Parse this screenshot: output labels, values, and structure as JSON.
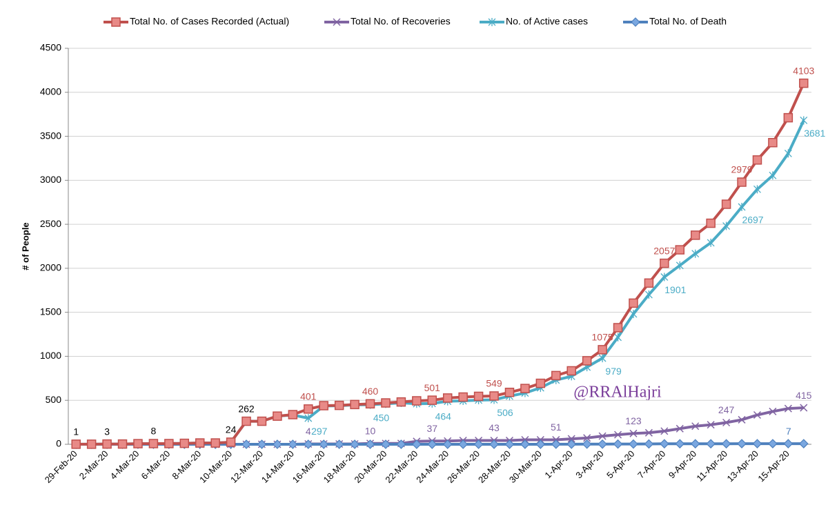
{
  "chart_data": {
    "type": "line",
    "y_label": "# of People",
    "annotation": "@RRAlHajri",
    "categories": [
      "29-Feb-20",
      null,
      "2-Mar-20",
      null,
      "4-Mar-20",
      null,
      "6-Mar-20",
      null,
      "8-Mar-20",
      null,
      "10-Mar-20",
      null,
      "12-Mar-20",
      null,
      "14-Mar-20",
      null,
      "16-Mar-20",
      null,
      "18-Mar-20",
      null,
      "20-Mar-20",
      null,
      "22-Mar-20",
      null,
      "24-Mar-20",
      null,
      "26-Mar-20",
      null,
      "28-Mar-20",
      null,
      "30-Mar-20",
      null,
      "1-Apr-20",
      null,
      "3-Apr-20",
      null,
      "5-Apr-20",
      null,
      "7-Apr-20",
      null,
      "9-Apr-20",
      null,
      "11-Apr-20",
      null,
      "13-Apr-20",
      null,
      "15-Apr-20",
      null
    ],
    "ylim": [
      0,
      4500
    ],
    "yticks": [
      0,
      500,
      1000,
      1500,
      2000,
      2500,
      3000,
      3500,
      4000,
      4500
    ],
    "grid": true,
    "legend": "top",
    "series": [
      {
        "name": "Total No. of Cases Recorded (Actual)",
        "color": "#c0504d",
        "marker": "square",
        "values": [
          1,
          1,
          3,
          3,
          7,
          8,
          8,
          11,
          15,
          15,
          24,
          262,
          262,
          320,
          337,
          401,
          439,
          442,
          452,
          460,
          470,
          481,
          494,
          501,
          526,
          537,
          545,
          549,
          590,
          634,
          693,
          781,
          835,
          949,
          1075,
          1325,
          1604,
          1832,
          2057,
          2210,
          2376,
          2512,
          2728,
          2979,
          3231,
          3428,
          3711,
          4103
        ],
        "value_labels": [
          "1",
          null,
          "3",
          null,
          null,
          "8",
          null,
          null,
          null,
          null,
          "24",
          "262",
          null,
          null,
          null,
          "401",
          null,
          null,
          null,
          "460",
          null,
          null,
          null,
          "501",
          null,
          null,
          null,
          "549",
          null,
          null,
          null,
          null,
          null,
          null,
          "1075",
          null,
          null,
          null,
          "2057",
          null,
          null,
          null,
          null,
          "2979",
          null,
          null,
          null,
          "4103"
        ]
      },
      {
        "name": "Total No. of Recoveries",
        "color": "#8064a2",
        "marker": "x",
        "values": [
          0,
          0,
          0,
          0,
          0,
          0,
          0,
          0,
          0,
          0,
          0,
          0,
          0,
          0,
          0,
          4,
          4,
          4,
          4,
          10,
          10,
          10,
          33,
          37,
          37,
          43,
          43,
          43,
          43,
          51,
          51,
          51,
          62,
          72,
          93,
          109,
          123,
          131,
          150,
          178,
          206,
          222,
          247,
          279,
          333,
          373,
          406,
          415
        ],
        "value_labels": [
          null,
          null,
          null,
          null,
          null,
          null,
          null,
          null,
          null,
          null,
          null,
          null,
          null,
          null,
          null,
          "4",
          null,
          null,
          null,
          "10",
          null,
          null,
          null,
          "37",
          null,
          null,
          null,
          "43",
          null,
          null,
          null,
          "51",
          null,
          null,
          null,
          null,
          "123",
          null,
          null,
          null,
          null,
          null,
          "247",
          null,
          null,
          null,
          null,
          "415"
        ]
      },
      {
        "name": "No. of Active cases",
        "color": "#4bacc6",
        "marker": "star",
        "values": [
          1,
          1,
          3,
          3,
          7,
          8,
          8,
          11,
          15,
          15,
          24,
          262,
          262,
          320,
          333,
          297,
          435,
          438,
          448,
          450,
          460,
          471,
          461,
          464,
          489,
          494,
          502,
          506,
          547,
          583,
          642,
          730,
          773,
          877,
          979,
          1216,
          1481,
          1701,
          1901,
          2032,
          2166,
          2290,
          2481,
          2697,
          2898,
          3055,
          3305,
          3681
        ],
        "value_labels": [
          null,
          null,
          null,
          null,
          null,
          null,
          null,
          null,
          null,
          null,
          null,
          null,
          null,
          null,
          null,
          "297",
          null,
          null,
          null,
          "450",
          null,
          null,
          null,
          "464",
          null,
          null,
          null,
          "506",
          null,
          null,
          null,
          null,
          null,
          null,
          "979",
          null,
          null,
          null,
          "1901",
          null,
          null,
          null,
          null,
          "2697",
          null,
          null,
          null,
          "3681"
        ]
      },
      {
        "name": "Total No. of Death",
        "color": "#4f81bd",
        "marker": "diamond",
        "values": [
          0,
          0,
          0,
          0,
          0,
          0,
          0,
          0,
          0,
          0,
          0,
          0,
          0,
          0,
          0,
          0,
          0,
          0,
          0,
          0,
          0,
          0,
          0,
          0,
          0,
          0,
          0,
          0,
          0,
          0,
          0,
          1,
          1,
          2,
          2,
          3,
          3,
          4,
          6,
          6,
          6,
          6,
          6,
          7,
          7,
          7,
          7,
          7
        ],
        "value_labels": [
          null,
          null,
          null,
          null,
          null,
          null,
          null,
          null,
          null,
          null,
          null,
          null,
          null,
          null,
          null,
          null,
          null,
          null,
          null,
          null,
          null,
          null,
          null,
          null,
          null,
          null,
          null,
          null,
          null,
          null,
          null,
          null,
          null,
          null,
          null,
          null,
          null,
          null,
          null,
          null,
          null,
          null,
          null,
          null,
          null,
          null,
          null,
          "7"
        ]
      }
    ]
  }
}
